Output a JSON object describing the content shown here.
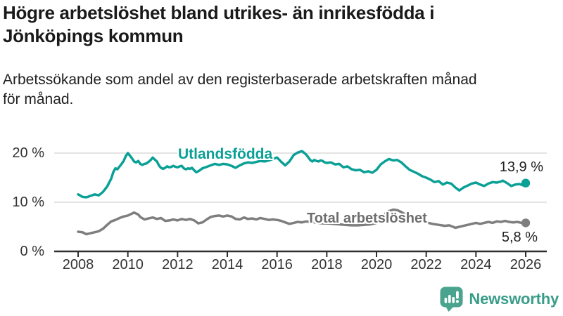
{
  "header": {
    "title_line1": "Högre arbetslöshet bland utrikes- än inrikesfödda i",
    "title_line2": "Jönköpings kommun",
    "subtitle_line1": "Arbetssökande som andel av den registerbaserade arbetskraften månad",
    "subtitle_line2": "för månad."
  },
  "brand": {
    "name": "Newsworthy",
    "icon": "newsworthy-speech-bubble-bar-chart-icon",
    "icon_color": "#4aa38f",
    "text_color": "#3a9d89"
  },
  "chart_data": {
    "type": "line",
    "unit": "%",
    "title": "Högre arbetslöshet bland utrikes- än inrikesfödda i Jönköpings kommun",
    "subtitle": "Arbetssökande som andel av den registerbaserade arbetskraften månad för månad.",
    "grid": "horizontal-only",
    "x_axis": {
      "ticks": [
        2008,
        2010,
        2012,
        2014,
        2016,
        2018,
        2020,
        2022,
        2024,
        2026
      ],
      "range": [
        2007.05,
        2026.85
      ]
    },
    "y_axis": {
      "range": [
        0,
        21.4
      ],
      "gridlines": [
        10,
        20
      ],
      "ticks": [
        {
          "value": 0,
          "label": "0 %"
        },
        {
          "value": 10,
          "label": "10 %"
        },
        {
          "value": 20,
          "label": "20 %"
        }
      ]
    },
    "colors": {
      "grid": "#dcdcdc",
      "axis": "#2f2f2f",
      "tick_text": "#333333"
    },
    "series": [
      {
        "name": "Utlandsfödda",
        "color": "#0aa096",
        "label_color": "#0aa096",
        "end_label": "13,9 %",
        "end_value": 13.9,
        "points": [
          [
            2008.0,
            11.6
          ],
          [
            2008.17,
            11.1
          ],
          [
            2008.33,
            11.0
          ],
          [
            2008.5,
            11.3
          ],
          [
            2008.67,
            11.6
          ],
          [
            2008.83,
            11.4
          ],
          [
            2009.0,
            12.1
          ],
          [
            2009.17,
            13.2
          ],
          [
            2009.33,
            14.8
          ],
          [
            2009.42,
            16.2
          ],
          [
            2009.5,
            16.9
          ],
          [
            2009.58,
            16.7
          ],
          [
            2009.75,
            17.8
          ],
          [
            2009.83,
            18.4
          ],
          [
            2009.92,
            19.4
          ],
          [
            2010.0,
            20.0
          ],
          [
            2010.08,
            19.5
          ],
          [
            2010.17,
            18.9
          ],
          [
            2010.25,
            18.3
          ],
          [
            2010.33,
            18.1
          ],
          [
            2010.42,
            18.4
          ],
          [
            2010.5,
            17.8
          ],
          [
            2010.58,
            17.6
          ],
          [
            2010.67,
            17.8
          ],
          [
            2010.75,
            17.9
          ],
          [
            2010.83,
            18.2
          ],
          [
            2010.92,
            18.6
          ],
          [
            2011.0,
            19.1
          ],
          [
            2011.08,
            18.7
          ],
          [
            2011.17,
            18.3
          ],
          [
            2011.25,
            17.5
          ],
          [
            2011.33,
            17.0
          ],
          [
            2011.42,
            16.8
          ],
          [
            2011.5,
            17.0
          ],
          [
            2011.58,
            17.3
          ],
          [
            2011.67,
            17.1
          ],
          [
            2011.75,
            17.2
          ],
          [
            2011.83,
            17.4
          ],
          [
            2011.92,
            17.2
          ],
          [
            2012.0,
            17.1
          ],
          [
            2012.08,
            17.3
          ],
          [
            2012.17,
            17.4
          ],
          [
            2012.25,
            16.9
          ],
          [
            2012.33,
            16.7
          ],
          [
            2012.42,
            16.9
          ],
          [
            2012.5,
            16.8
          ],
          [
            2012.58,
            17.0
          ],
          [
            2012.67,
            16.5
          ],
          [
            2012.75,
            16.1
          ],
          [
            2012.83,
            16.3
          ],
          [
            2012.92,
            16.6
          ],
          [
            2013.0,
            16.9
          ],
          [
            2013.17,
            17.2
          ],
          [
            2013.33,
            17.5
          ],
          [
            2013.5,
            17.8
          ],
          [
            2013.67,
            17.6
          ],
          [
            2013.83,
            17.8
          ],
          [
            2014.0,
            17.7
          ],
          [
            2014.17,
            17.4
          ],
          [
            2014.33,
            17.0
          ],
          [
            2014.5,
            17.5
          ],
          [
            2014.67,
            17.9
          ],
          [
            2014.83,
            18.1
          ],
          [
            2015.0,
            18.0
          ],
          [
            2015.17,
            18.2
          ],
          [
            2015.33,
            18.4
          ],
          [
            2015.5,
            18.3
          ],
          [
            2015.67,
            18.5
          ],
          [
            2015.83,
            18.8
          ],
          [
            2016.0,
            19.1
          ],
          [
            2016.17,
            18.2
          ],
          [
            2016.33,
            17.5
          ],
          [
            2016.5,
            18.3
          ],
          [
            2016.67,
            19.6
          ],
          [
            2016.83,
            20.1
          ],
          [
            2017.0,
            20.4
          ],
          [
            2017.08,
            20.1
          ],
          [
            2017.17,
            19.7
          ],
          [
            2017.25,
            19.2
          ],
          [
            2017.33,
            18.6
          ],
          [
            2017.42,
            18.3
          ],
          [
            2017.5,
            18.6
          ],
          [
            2017.58,
            18.4
          ],
          [
            2017.67,
            18.3
          ],
          [
            2017.75,
            18.5
          ],
          [
            2017.83,
            18.4
          ],
          [
            2017.92,
            18.1
          ],
          [
            2018.0,
            18.0
          ],
          [
            2018.17,
            18.1
          ],
          [
            2018.33,
            17.7
          ],
          [
            2018.5,
            17.8
          ],
          [
            2018.67,
            17.1
          ],
          [
            2018.83,
            17.3
          ],
          [
            2019.0,
            16.7
          ],
          [
            2019.17,
            16.5
          ],
          [
            2019.33,
            16.6
          ],
          [
            2019.5,
            16.1
          ],
          [
            2019.67,
            16.3
          ],
          [
            2019.83,
            16.0
          ],
          [
            2020.0,
            16.6
          ],
          [
            2020.17,
            17.7
          ],
          [
            2020.33,
            18.3
          ],
          [
            2020.5,
            18.8
          ],
          [
            2020.67,
            18.5
          ],
          [
            2020.83,
            18.6
          ],
          [
            2021.0,
            18.1
          ],
          [
            2021.17,
            17.3
          ],
          [
            2021.33,
            16.6
          ],
          [
            2021.5,
            16.2
          ],
          [
            2021.67,
            15.8
          ],
          [
            2021.83,
            15.3
          ],
          [
            2022.0,
            15.0
          ],
          [
            2022.17,
            14.6
          ],
          [
            2022.33,
            14.1
          ],
          [
            2022.5,
            14.3
          ],
          [
            2022.67,
            13.6
          ],
          [
            2022.83,
            14.0
          ],
          [
            2023.0,
            13.8
          ],
          [
            2023.17,
            13.0
          ],
          [
            2023.33,
            12.4
          ],
          [
            2023.5,
            13.0
          ],
          [
            2023.67,
            13.4
          ],
          [
            2023.83,
            13.8
          ],
          [
            2024.0,
            14.0
          ],
          [
            2024.17,
            13.6
          ],
          [
            2024.33,
            13.3
          ],
          [
            2024.5,
            13.8
          ],
          [
            2024.67,
            14.1
          ],
          [
            2024.83,
            14.0
          ],
          [
            2025.0,
            14.2
          ],
          [
            2025.08,
            14.4
          ],
          [
            2025.25,
            13.9
          ],
          [
            2025.42,
            13.3
          ],
          [
            2025.58,
            13.6
          ],
          [
            2025.75,
            13.7
          ],
          [
            2025.92,
            13.4
          ],
          [
            2026.0,
            13.9
          ]
        ]
      },
      {
        "name": "Total arbetslöshet",
        "color": "#7e7e7e",
        "label_color": "#6d6d6d",
        "end_label": "5,8 %",
        "end_value": 5.8,
        "points": [
          [
            2008.0,
            4.0
          ],
          [
            2008.17,
            3.9
          ],
          [
            2008.33,
            3.5
          ],
          [
            2008.5,
            3.7
          ],
          [
            2008.67,
            3.9
          ],
          [
            2008.83,
            4.1
          ],
          [
            2009.0,
            4.6
          ],
          [
            2009.17,
            5.4
          ],
          [
            2009.33,
            6.1
          ],
          [
            2009.5,
            6.4
          ],
          [
            2009.67,
            6.8
          ],
          [
            2009.83,
            7.1
          ],
          [
            2010.0,
            7.3
          ],
          [
            2010.17,
            7.7
          ],
          [
            2010.25,
            7.9
          ],
          [
            2010.42,
            7.5
          ],
          [
            2010.5,
            7.0
          ],
          [
            2010.67,
            6.5
          ],
          [
            2010.83,
            6.7
          ],
          [
            2011.0,
            6.9
          ],
          [
            2011.17,
            6.6
          ],
          [
            2011.33,
            6.8
          ],
          [
            2011.5,
            6.2
          ],
          [
            2011.67,
            6.3
          ],
          [
            2011.83,
            6.5
          ],
          [
            2012.0,
            6.3
          ],
          [
            2012.17,
            6.6
          ],
          [
            2012.33,
            6.4
          ],
          [
            2012.5,
            6.6
          ],
          [
            2012.67,
            6.3
          ],
          [
            2012.83,
            5.7
          ],
          [
            2013.0,
            5.9
          ],
          [
            2013.17,
            6.5
          ],
          [
            2013.33,
            7.0
          ],
          [
            2013.5,
            7.2
          ],
          [
            2013.67,
            7.3
          ],
          [
            2013.83,
            7.1
          ],
          [
            2014.0,
            7.3
          ],
          [
            2014.17,
            7.1
          ],
          [
            2014.33,
            6.6
          ],
          [
            2014.5,
            6.5
          ],
          [
            2014.67,
            6.9
          ],
          [
            2014.83,
            6.6
          ],
          [
            2015.0,
            6.7
          ],
          [
            2015.17,
            6.5
          ],
          [
            2015.33,
            6.8
          ],
          [
            2015.5,
            6.6
          ],
          [
            2015.67,
            6.4
          ],
          [
            2015.83,
            6.5
          ],
          [
            2016.0,
            6.4
          ],
          [
            2016.17,
            6.2
          ],
          [
            2016.33,
            5.9
          ],
          [
            2016.5,
            5.6
          ],
          [
            2016.67,
            5.8
          ],
          [
            2016.83,
            6.0
          ],
          [
            2017.0,
            5.9
          ],
          [
            2017.17,
            6.1
          ],
          [
            2017.33,
            6.0
          ],
          [
            2017.5,
            5.9
          ],
          [
            2017.67,
            5.8
          ],
          [
            2017.83,
            5.7
          ],
          [
            2018.0,
            5.7
          ],
          [
            2018.25,
            5.6
          ],
          [
            2018.5,
            5.5
          ],
          [
            2018.75,
            5.4
          ],
          [
            2019.0,
            5.3
          ],
          [
            2019.25,
            5.3
          ],
          [
            2019.5,
            5.4
          ],
          [
            2019.75,
            5.5
          ],
          [
            2020.0,
            5.8
          ],
          [
            2020.17,
            6.6
          ],
          [
            2020.33,
            7.6
          ],
          [
            2020.5,
            8.2
          ],
          [
            2020.67,
            8.5
          ],
          [
            2020.83,
            8.4
          ],
          [
            2021.0,
            8.0
          ],
          [
            2021.17,
            7.5
          ],
          [
            2021.33,
            7.1
          ],
          [
            2021.5,
            6.7
          ],
          [
            2021.67,
            6.4
          ],
          [
            2021.83,
            6.1
          ],
          [
            2022.0,
            5.9
          ],
          [
            2022.25,
            5.6
          ],
          [
            2022.5,
            5.4
          ],
          [
            2022.75,
            5.2
          ],
          [
            2022.92,
            5.3
          ],
          [
            2023.08,
            5.0
          ],
          [
            2023.17,
            4.8
          ],
          [
            2023.33,
            5.0
          ],
          [
            2023.5,
            5.2
          ],
          [
            2023.67,
            5.4
          ],
          [
            2023.83,
            5.6
          ],
          [
            2024.0,
            5.8
          ],
          [
            2024.17,
            5.6
          ],
          [
            2024.33,
            5.8
          ],
          [
            2024.5,
            6.0
          ],
          [
            2024.67,
            5.8
          ],
          [
            2024.83,
            6.1
          ],
          [
            2025.0,
            6.0
          ],
          [
            2025.17,
            6.2
          ],
          [
            2025.33,
            6.0
          ],
          [
            2025.5,
            5.9
          ],
          [
            2025.67,
            6.0
          ],
          [
            2025.83,
            5.8
          ],
          [
            2026.0,
            5.8
          ]
        ]
      }
    ]
  }
}
